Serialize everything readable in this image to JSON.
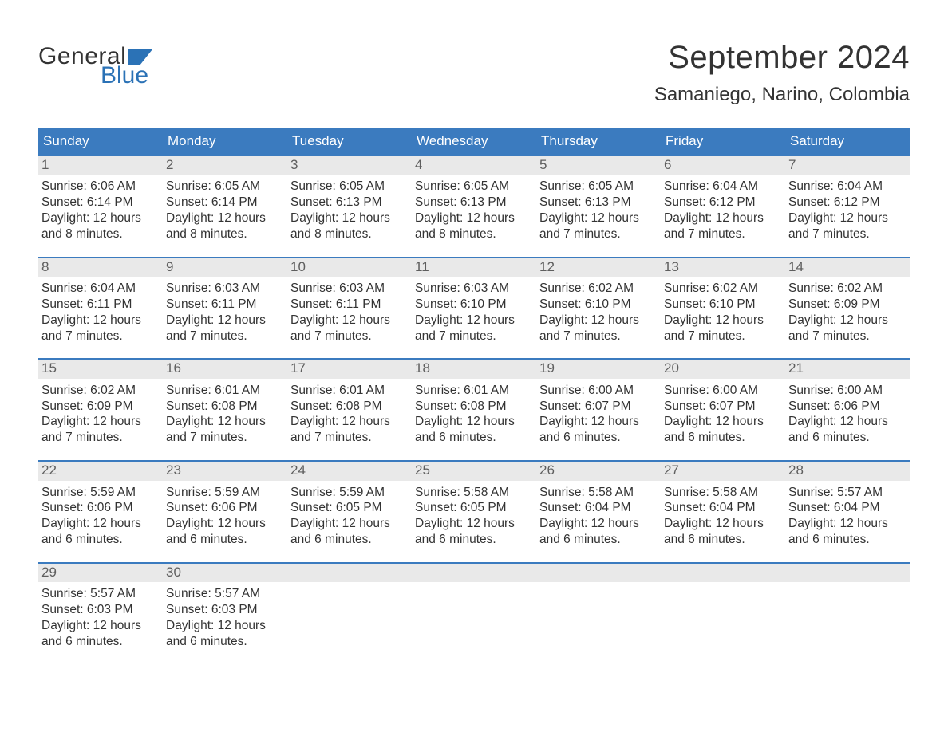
{
  "brand": {
    "word1": "General",
    "word2": "Blue",
    "logo_color": "#2b72b6"
  },
  "title": "September 2024",
  "location": "Samaniego, Narino, Colombia",
  "colors": {
    "header_bg": "#3b7bbf",
    "header_text": "#ffffff",
    "daynum_bg": "#e9e9e9",
    "daynum_text": "#5e5e5e",
    "body_text": "#333333",
    "rule": "#3b7bbf",
    "page_bg": "#ffffff"
  },
  "fonts": {
    "title_size_pt": 30,
    "location_size_pt": 18,
    "dow_size_pt": 13,
    "daynum_size_pt": 13,
    "detail_size_pt": 12
  },
  "days_of_week": [
    "Sunday",
    "Monday",
    "Tuesday",
    "Wednesday",
    "Thursday",
    "Friday",
    "Saturday"
  ],
  "weeks": [
    [
      {
        "n": "1",
        "sunrise": "Sunrise: 6:06 AM",
        "sunset": "Sunset: 6:14 PM",
        "dl1": "Daylight: 12 hours",
        "dl2": "and 8 minutes."
      },
      {
        "n": "2",
        "sunrise": "Sunrise: 6:05 AM",
        "sunset": "Sunset: 6:14 PM",
        "dl1": "Daylight: 12 hours",
        "dl2": "and 8 minutes."
      },
      {
        "n": "3",
        "sunrise": "Sunrise: 6:05 AM",
        "sunset": "Sunset: 6:13 PM",
        "dl1": "Daylight: 12 hours",
        "dl2": "and 8 minutes."
      },
      {
        "n": "4",
        "sunrise": "Sunrise: 6:05 AM",
        "sunset": "Sunset: 6:13 PM",
        "dl1": "Daylight: 12 hours",
        "dl2": "and 8 minutes."
      },
      {
        "n": "5",
        "sunrise": "Sunrise: 6:05 AM",
        "sunset": "Sunset: 6:13 PM",
        "dl1": "Daylight: 12 hours",
        "dl2": "and 7 minutes."
      },
      {
        "n": "6",
        "sunrise": "Sunrise: 6:04 AM",
        "sunset": "Sunset: 6:12 PM",
        "dl1": "Daylight: 12 hours",
        "dl2": "and 7 minutes."
      },
      {
        "n": "7",
        "sunrise": "Sunrise: 6:04 AM",
        "sunset": "Sunset: 6:12 PM",
        "dl1": "Daylight: 12 hours",
        "dl2": "and 7 minutes."
      }
    ],
    [
      {
        "n": "8",
        "sunrise": "Sunrise: 6:04 AM",
        "sunset": "Sunset: 6:11 PM",
        "dl1": "Daylight: 12 hours",
        "dl2": "and 7 minutes."
      },
      {
        "n": "9",
        "sunrise": "Sunrise: 6:03 AM",
        "sunset": "Sunset: 6:11 PM",
        "dl1": "Daylight: 12 hours",
        "dl2": "and 7 minutes."
      },
      {
        "n": "10",
        "sunrise": "Sunrise: 6:03 AM",
        "sunset": "Sunset: 6:11 PM",
        "dl1": "Daylight: 12 hours",
        "dl2": "and 7 minutes."
      },
      {
        "n": "11",
        "sunrise": "Sunrise: 6:03 AM",
        "sunset": "Sunset: 6:10 PM",
        "dl1": "Daylight: 12 hours",
        "dl2": "and 7 minutes."
      },
      {
        "n": "12",
        "sunrise": "Sunrise: 6:02 AM",
        "sunset": "Sunset: 6:10 PM",
        "dl1": "Daylight: 12 hours",
        "dl2": "and 7 minutes."
      },
      {
        "n": "13",
        "sunrise": "Sunrise: 6:02 AM",
        "sunset": "Sunset: 6:10 PM",
        "dl1": "Daylight: 12 hours",
        "dl2": "and 7 minutes."
      },
      {
        "n": "14",
        "sunrise": "Sunrise: 6:02 AM",
        "sunset": "Sunset: 6:09 PM",
        "dl1": "Daylight: 12 hours",
        "dl2": "and 7 minutes."
      }
    ],
    [
      {
        "n": "15",
        "sunrise": "Sunrise: 6:02 AM",
        "sunset": "Sunset: 6:09 PM",
        "dl1": "Daylight: 12 hours",
        "dl2": "and 7 minutes."
      },
      {
        "n": "16",
        "sunrise": "Sunrise: 6:01 AM",
        "sunset": "Sunset: 6:08 PM",
        "dl1": "Daylight: 12 hours",
        "dl2": "and 7 minutes."
      },
      {
        "n": "17",
        "sunrise": "Sunrise: 6:01 AM",
        "sunset": "Sunset: 6:08 PM",
        "dl1": "Daylight: 12 hours",
        "dl2": "and 7 minutes."
      },
      {
        "n": "18",
        "sunrise": "Sunrise: 6:01 AM",
        "sunset": "Sunset: 6:08 PM",
        "dl1": "Daylight: 12 hours",
        "dl2": "and 6 minutes."
      },
      {
        "n": "19",
        "sunrise": "Sunrise: 6:00 AM",
        "sunset": "Sunset: 6:07 PM",
        "dl1": "Daylight: 12 hours",
        "dl2": "and 6 minutes."
      },
      {
        "n": "20",
        "sunrise": "Sunrise: 6:00 AM",
        "sunset": "Sunset: 6:07 PM",
        "dl1": "Daylight: 12 hours",
        "dl2": "and 6 minutes."
      },
      {
        "n": "21",
        "sunrise": "Sunrise: 6:00 AM",
        "sunset": "Sunset: 6:06 PM",
        "dl1": "Daylight: 12 hours",
        "dl2": "and 6 minutes."
      }
    ],
    [
      {
        "n": "22",
        "sunrise": "Sunrise: 5:59 AM",
        "sunset": "Sunset: 6:06 PM",
        "dl1": "Daylight: 12 hours",
        "dl2": "and 6 minutes."
      },
      {
        "n": "23",
        "sunrise": "Sunrise: 5:59 AM",
        "sunset": "Sunset: 6:06 PM",
        "dl1": "Daylight: 12 hours",
        "dl2": "and 6 minutes."
      },
      {
        "n": "24",
        "sunrise": "Sunrise: 5:59 AM",
        "sunset": "Sunset: 6:05 PM",
        "dl1": "Daylight: 12 hours",
        "dl2": "and 6 minutes."
      },
      {
        "n": "25",
        "sunrise": "Sunrise: 5:58 AM",
        "sunset": "Sunset: 6:05 PM",
        "dl1": "Daylight: 12 hours",
        "dl2": "and 6 minutes."
      },
      {
        "n": "26",
        "sunrise": "Sunrise: 5:58 AM",
        "sunset": "Sunset: 6:04 PM",
        "dl1": "Daylight: 12 hours",
        "dl2": "and 6 minutes."
      },
      {
        "n": "27",
        "sunrise": "Sunrise: 5:58 AM",
        "sunset": "Sunset: 6:04 PM",
        "dl1": "Daylight: 12 hours",
        "dl2": "and 6 minutes."
      },
      {
        "n": "28",
        "sunrise": "Sunrise: 5:57 AM",
        "sunset": "Sunset: 6:04 PM",
        "dl1": "Daylight: 12 hours",
        "dl2": "and 6 minutes."
      }
    ],
    [
      {
        "n": "29",
        "sunrise": "Sunrise: 5:57 AM",
        "sunset": "Sunset: 6:03 PM",
        "dl1": "Daylight: 12 hours",
        "dl2": "and 6 minutes."
      },
      {
        "n": "30",
        "sunrise": "Sunrise: 5:57 AM",
        "sunset": "Sunset: 6:03 PM",
        "dl1": "Daylight: 12 hours",
        "dl2": "and 6 minutes."
      },
      {
        "n": "",
        "sunrise": "",
        "sunset": "",
        "dl1": "",
        "dl2": "",
        "empty": true
      },
      {
        "n": "",
        "sunrise": "",
        "sunset": "",
        "dl1": "",
        "dl2": "",
        "empty": true
      },
      {
        "n": "",
        "sunrise": "",
        "sunset": "",
        "dl1": "",
        "dl2": "",
        "empty": true
      },
      {
        "n": "",
        "sunrise": "",
        "sunset": "",
        "dl1": "",
        "dl2": "",
        "empty": true
      },
      {
        "n": "",
        "sunrise": "",
        "sunset": "",
        "dl1": "",
        "dl2": "",
        "empty": true
      }
    ]
  ]
}
